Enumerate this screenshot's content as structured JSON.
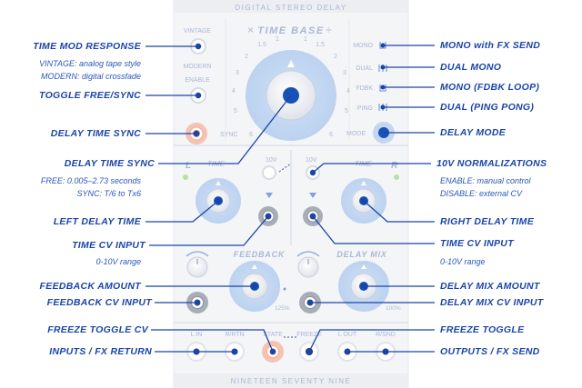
{
  "panel": {
    "title": "DIGITAL STEREO DELAY",
    "footer": "NINETEEN SEVENTY NINE",
    "time_base": "TIME BASE",
    "time_base_minus": "×",
    "time_base_divide": "÷",
    "vintage": "VINTAGE",
    "modern": "MODERN",
    "enable": "ENABLE",
    "sync": "SYNC",
    "mode": "MODE",
    "modes": [
      "MONO",
      "DUAL",
      "FDBK",
      "PING"
    ],
    "scale_left": [
      "6",
      "5",
      "4",
      "3",
      "2",
      "1.5",
      "1"
    ],
    "scale_right": [
      "1",
      "1.5",
      "2",
      "3",
      "4",
      "5",
      "6"
    ],
    "ch_left": "L",
    "ch_right": "R",
    "time_l": "TIME",
    "time_r": "TIME",
    "norm_10v_a": "10V",
    "norm_10v_b": "10V",
    "feedback": "FEEDBACK",
    "delay_mix": "DELAY MIX",
    "pct_125": "125%",
    "pct_100": "100%",
    "jacks": [
      "L IN",
      "R/RTN",
      "STATE",
      "FREEZE",
      "L OUT",
      "R/SND"
    ]
  },
  "callouts_left": {
    "time_mod_response": "TIME MOD RESPONSE",
    "time_mod_vintage": "VINTAGE: analog tape style",
    "time_mod_modern": "MODERN: digital crossfade",
    "toggle_free_sync": "TOGGLE FREE/SYNC",
    "delay_time_sync": "DELAY TIME SYNC",
    "delay_time_sync_2": "DELAY TIME SYNC",
    "free_range": "FREE: 0.005–2.73 seconds",
    "sync_range": "SYNC: T/6 to Tx6",
    "left_delay_time": "LEFT DELAY TIME",
    "time_cv_input": "TIME CV INPUT",
    "time_cv_range": "0-10V range",
    "feedback_amount": "FEEDBACK AMOUNT",
    "feedback_cv_input": "FEEDBACK CV INPUT",
    "freeze_toggle_cv": "FREEZE TOGGLE CV",
    "inputs_fx_return": "INPUTS / FX RETURN"
  },
  "callouts_right": {
    "mono_fx_send": "MONO with FX SEND",
    "dual_mono": "DUAL MONO",
    "mono_fdbk_loop": "MONO (FDBK LOOP)",
    "dual_ping_pong": "DUAL (PING PONG)",
    "delay_mode": "DELAY MODE",
    "norm_10v": "10V NORMALIZATIONS",
    "norm_enable": "ENABLE: manual control",
    "norm_disable": "DISABLE: external CV",
    "right_delay_time": "RIGHT DELAY TIME",
    "time_cv_input": "TIME CV INPUT",
    "time_cv_range": "0-10V range",
    "delay_mix_amount": "DELAY MIX AMOUNT",
    "delay_mix_cv_input": "DELAY MIX CV INPUT",
    "freeze_toggle": "FREEZE TOGGLE",
    "outputs_fx_send": "OUTPUTS / FX SEND"
  },
  "colors": {
    "label_blue": "#1a45a8",
    "panel_text": "#a9b8d4",
    "knob_halo": "#c3d7f1",
    "knob_center": "#1652b8",
    "jack_orange": "#f6c2b1",
    "panel_bg": "#f5f6f8"
  }
}
